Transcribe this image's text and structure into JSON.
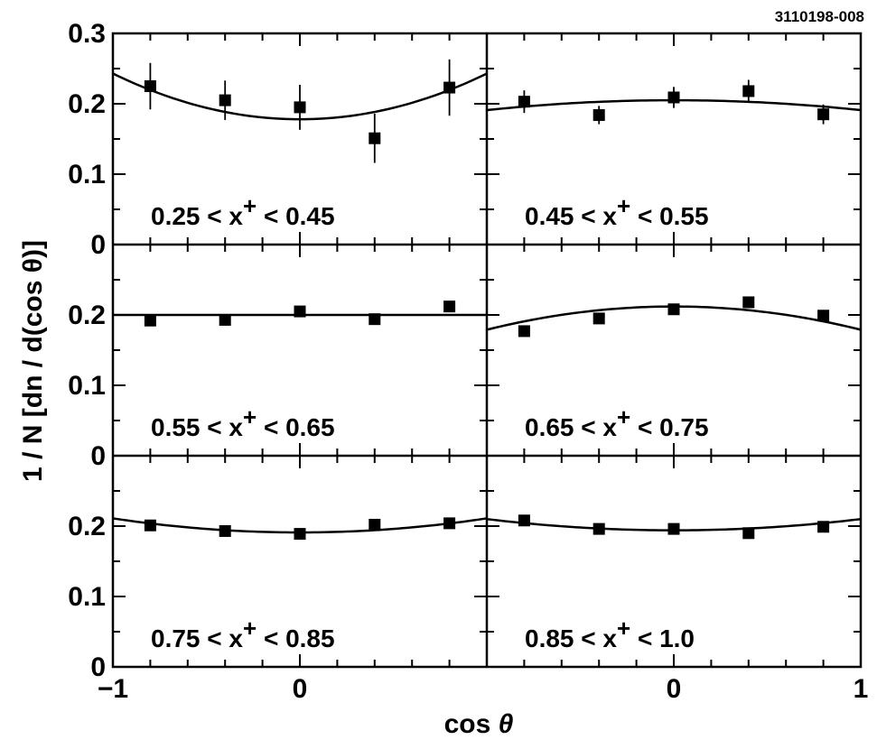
{
  "chart_data": {
    "type": "scatter",
    "figure_id": "3110198-008",
    "xlabel": "cos θ",
    "ylabel": "1 / N [dn / d(cos θ)]",
    "xlim": [
      -1,
      1
    ],
    "ylim": [
      0,
      0.3
    ],
    "ylim_lower_rows": [
      0,
      0.3
    ],
    "x_tick_labels": [
      "−1",
      "0",
      "0",
      "1"
    ],
    "y_tick_labels_top": [
      "0.3",
      "0.2",
      "0.1",
      "0"
    ],
    "y_tick_labels_middle": [
      "0.2",
      "0.1",
      "0"
    ],
    "y_tick_labels_bottom": [
      "0.2",
      "0.1",
      "0"
    ],
    "panels": [
      {
        "name": "0.25-0.45",
        "label": {
          "prefix": "0.25 < x",
          "superscript": "+",
          "suffix": " < 0.45"
        },
        "points": [
          {
            "x": -0.8,
            "y": 0.225,
            "err": 0.033
          },
          {
            "x": -0.4,
            "y": 0.205,
            "err": 0.028
          },
          {
            "x": 0.0,
            "y": 0.195,
            "err": 0.032
          },
          {
            "x": 0.4,
            "y": 0.151,
            "err": 0.035
          },
          {
            "x": 0.8,
            "y": 0.223,
            "err": 0.04
          }
        ],
        "fit": {
          "a": 0.178,
          "c": 0.065
        }
      },
      {
        "name": "0.45-0.55",
        "label": {
          "prefix": "0.45 < x",
          "superscript": "+",
          "suffix": " < 0.55"
        },
        "points": [
          {
            "x": -0.8,
            "y": 0.203,
            "err": 0.016
          },
          {
            "x": -0.4,
            "y": 0.184,
            "err": 0.013
          },
          {
            "x": 0.0,
            "y": 0.209,
            "err": 0.015
          },
          {
            "x": 0.4,
            "y": 0.218,
            "err": 0.016
          },
          {
            "x": 0.8,
            "y": 0.185,
            "err": 0.014
          }
        ],
        "fit": {
          "a": 0.205,
          "c": -0.014
        }
      },
      {
        "name": "0.55-0.65",
        "label": {
          "prefix": "0.55 < x",
          "superscript": "+",
          "suffix": " < 0.65"
        },
        "points": [
          {
            "x": -0.8,
            "y": 0.192,
            "err": 0.006
          },
          {
            "x": -0.4,
            "y": 0.193,
            "err": 0.006
          },
          {
            "x": 0.0,
            "y": 0.205,
            "err": 0.007
          },
          {
            "x": 0.4,
            "y": 0.194,
            "err": 0.006
          },
          {
            "x": 0.8,
            "y": 0.212,
            "err": 0.007
          }
        ],
        "fit": {
          "a": 0.2,
          "c": 0.0
        }
      },
      {
        "name": "0.65-0.75",
        "label": {
          "prefix": "0.65 < x",
          "superscript": "+",
          "suffix": " < 0.75"
        },
        "points": [
          {
            "x": -0.8,
            "y": 0.177,
            "err": 0.006
          },
          {
            "x": -0.4,
            "y": 0.195,
            "err": 0.006
          },
          {
            "x": 0.0,
            "y": 0.208,
            "err": 0.006
          },
          {
            "x": 0.4,
            "y": 0.218,
            "err": 0.007
          },
          {
            "x": 0.8,
            "y": 0.199,
            "err": 0.006
          }
        ],
        "fit": {
          "a": 0.212,
          "c": -0.033
        }
      },
      {
        "name": "0.75-0.85",
        "label": {
          "prefix": "0.75 < x",
          "superscript": "+",
          "suffix": " < 0.85"
        },
        "points": [
          {
            "x": -0.8,
            "y": 0.201,
            "err": 0.005
          },
          {
            "x": -0.4,
            "y": 0.193,
            "err": 0.005
          },
          {
            "x": 0.0,
            "y": 0.189,
            "err": 0.005
          },
          {
            "x": 0.4,
            "y": 0.202,
            "err": 0.005
          },
          {
            "x": 0.8,
            "y": 0.204,
            "err": 0.005
          }
        ],
        "fit": {
          "a": 0.191,
          "c": 0.02
        }
      },
      {
        "name": "0.85-1.0",
        "label": {
          "prefix": "0.85 < x",
          "superscript": "+",
          "suffix": " < 1.0"
        },
        "points": [
          {
            "x": -0.8,
            "y": 0.208,
            "err": 0.007
          },
          {
            "x": -0.4,
            "y": 0.196,
            "err": 0.007
          },
          {
            "x": 0.0,
            "y": 0.196,
            "err": 0.007
          },
          {
            "x": 0.4,
            "y": 0.19,
            "err": 0.007
          },
          {
            "x": 0.8,
            "y": 0.199,
            "err": 0.007
          }
        ],
        "fit": {
          "a": 0.194,
          "c": 0.016
        }
      }
    ]
  }
}
